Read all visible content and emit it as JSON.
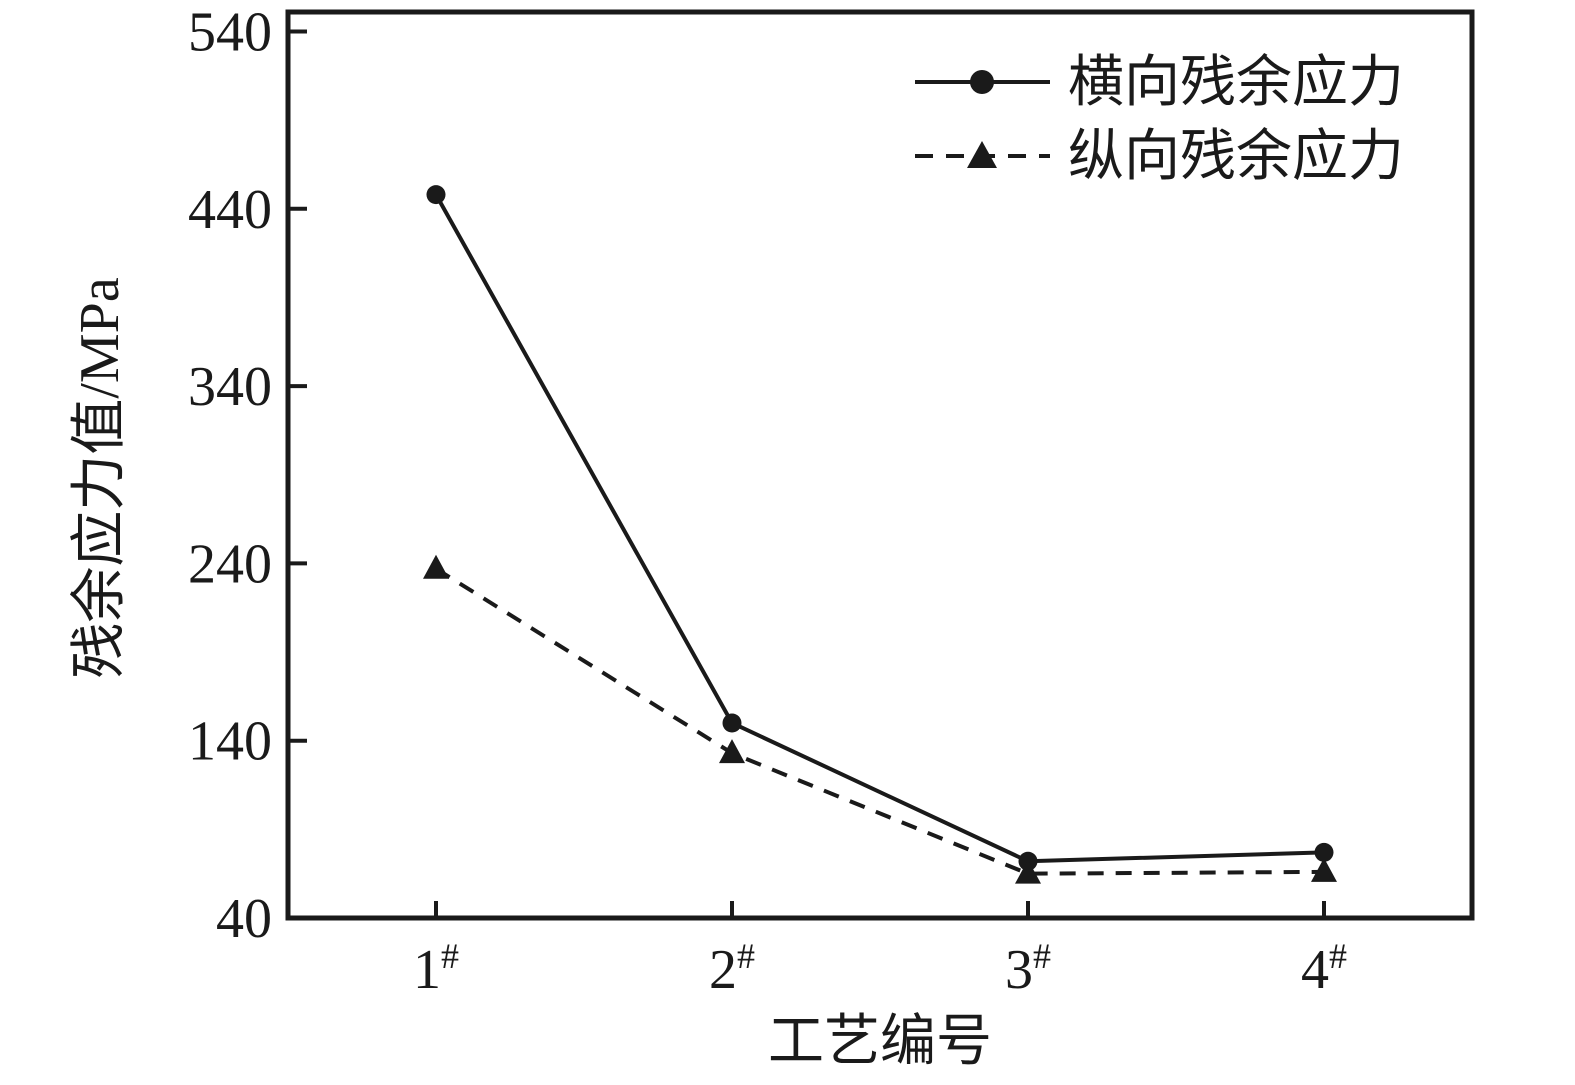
{
  "figure": {
    "background": "#ffffff",
    "ink_color": "#1a1a1a"
  },
  "chart_data": {
    "type": "line",
    "title": "",
    "xlabel": "工艺编号",
    "ylabel": "残余应力值/MPa",
    "categories": [
      {
        "label": "1",
        "sup": "#"
      },
      {
        "label": "2",
        "sup": "#"
      },
      {
        "label": "3",
        "sup": "#"
      },
      {
        "label": "4",
        "sup": "#"
      }
    ],
    "yticks": [
      40,
      140,
      240,
      340,
      440,
      540
    ],
    "ylim": [
      40,
      551
    ],
    "grid": false,
    "legend_position": "top-right",
    "series": [
      {
        "name": "横向残余应力",
        "marker": "circle",
        "line_style": "solid",
        "values": [
          448,
          150,
          72,
          77
        ]
      },
      {
        "name": "纵向残余应力",
        "marker": "triangle",
        "line_style": "dashed",
        "values": [
          237,
          133,
          65,
          66
        ]
      }
    ]
  }
}
